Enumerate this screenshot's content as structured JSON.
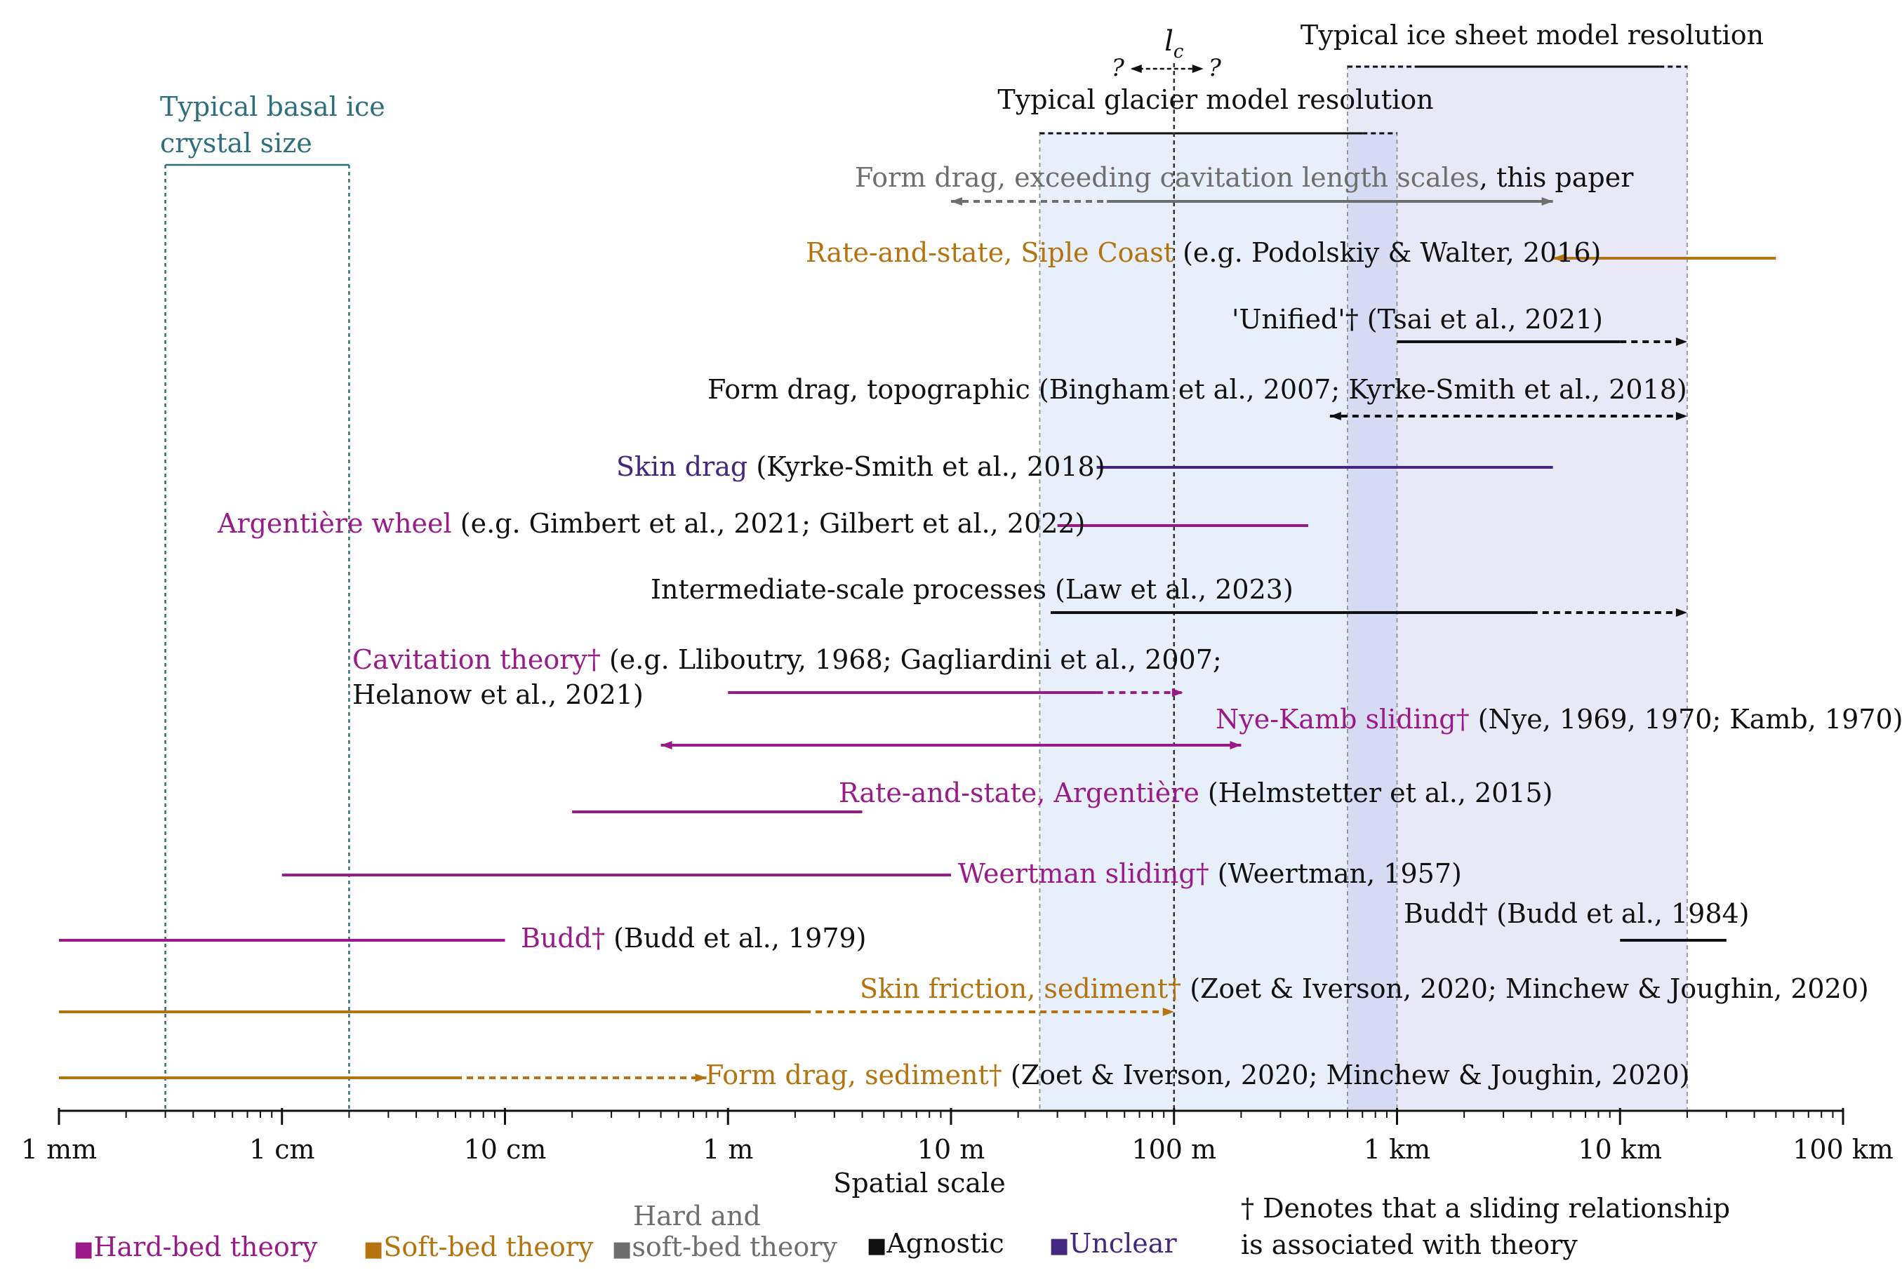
{
  "colors": {
    "hard": "#9a1a8a",
    "soft": "#b5730f",
    "both": "#6e6e6e",
    "agnostic": "#111111",
    "unclear": "#43277e",
    "crystal": "#2e6f7d",
    "glacier_band": "#e7f0fa",
    "icesheet_band": "#e9e8f7",
    "overlap_band": "#d6dbf3",
    "guide": "#999999"
  },
  "chart_data": {
    "type": "range",
    "xlabel": "Spatial scale",
    "xscale": "log10",
    "xlim_m": [
      0.001,
      100000
    ],
    "ticks": [
      {
        "value": 0.001,
        "label": "1 mm"
      },
      {
        "value": 0.01,
        "label": "1 cm"
      },
      {
        "value": 0.1,
        "label": "10 cm"
      },
      {
        "value": 1,
        "label": "1 m"
      },
      {
        "value": 10,
        "label": "10 m"
      },
      {
        "value": 100,
        "label": "100 m"
      },
      {
        "value": 1000,
        "label": "1 km"
      },
      {
        "value": 10000,
        "label": "10 km"
      },
      {
        "value": 100000,
        "label": "100 km"
      }
    ],
    "bands": [
      {
        "name": "Typical glacier model resolution",
        "from": 25,
        "to": 1000,
        "solid_from": 50,
        "solid_to": 700,
        "color_key": "glacier_band"
      },
      {
        "name": "Typical ice sheet model resolution",
        "from": 600,
        "to": 20000,
        "solid_from": 1200,
        "solid_to": 15000,
        "color_key": "icesheet_band"
      },
      {
        "name": "Typical basal ice crystal size",
        "from": 0.003,
        "to": 0.02,
        "color_key": "crystal"
      }
    ],
    "lc": {
      "label": "l",
      "sub": "c",
      "value": 100,
      "question_marks": [
        "?",
        "?"
      ]
    },
    "ranges": [
      {
        "category": "both",
        "label": "Form drag, exceeding cavitation length scales",
        "ref": ", this paper",
        "solid": [
          50,
          5000
        ],
        "dashed": [
          10,
          50
        ],
        "arrow_left": true,
        "arrow_right": true
      },
      {
        "category": "soft",
        "label": "Rate-and-state, Siple Coast",
        "ref": " (e.g. Podolskiy & Walter, 2016)",
        "solid": [
          5000,
          50000
        ],
        "arrow_left": true
      },
      {
        "category": "agnostic",
        "label": "'Unified'†",
        "ref": " (Tsai et al., 2021)",
        "solid": [
          1000,
          10000
        ],
        "dashed": [
          10000,
          20000
        ],
        "arrow_right": true
      },
      {
        "category": "agnostic",
        "label": "Form drag, topographic",
        "ref": " (Bingham et al., 2007; Kyrke-Smith et al., 2018)",
        "dashed": [
          500,
          20000
        ],
        "arrow_left": true,
        "arrow_right": true
      },
      {
        "category": "unclear",
        "label": "Skin drag",
        "ref": " (Kyrke-Smith et al., 2018)",
        "solid": [
          45,
          5000
        ]
      },
      {
        "category": "hard",
        "label": "Argentière wheel",
        "ref": " (e.g. Gimbert et al., 2021; Gilbert et al., 2022)",
        "solid": [
          30,
          400
        ]
      },
      {
        "category": "agnostic",
        "label": "Intermediate-scale processes",
        "ref": " (Law et al., 2023)",
        "solid": [
          28,
          4000
        ],
        "dashed": [
          4000,
          20000
        ],
        "arrow_right": true
      },
      {
        "category": "hard",
        "label": "Cavitation theory†",
        "ref": " (e.g. Lliboutry, 1968; Gagliardini et al., 2007;",
        "ref2": "Helanow et al., 2021)",
        "solid": [
          1,
          45
        ],
        "dashed": [
          45,
          110
        ],
        "arrow_right": true
      },
      {
        "category": "hard",
        "label": "Nye-Kamb sliding†",
        "ref": " (Nye, 1969, 1970; Kamb, 1970)",
        "solid": [
          0.5,
          200
        ],
        "arrow_left": true,
        "arrow_right": true
      },
      {
        "category": "hard",
        "label": "Rate-and-state, Argentière",
        "ref": " (Helmstetter et al., 2015)",
        "solid": [
          0.2,
          4
        ]
      },
      {
        "category": "hard",
        "label": "Weertman sliding†",
        "ref": " (Weertman, 1957)",
        "solid": [
          0.01,
          10
        ]
      },
      {
        "category": "agnostic",
        "label": "Budd†",
        "ref": " (Budd et al., 1984)",
        "solid": [
          10000,
          30000
        ]
      },
      {
        "category": "hard",
        "label": "Budd†",
        "ref": " (Budd et al., 1979)",
        "solid": [
          0.001,
          0.1
        ]
      },
      {
        "category": "soft",
        "label": "Skin friction, sediment†",
        "ref": " (Zoet & Iverson, 2020; Minchew & Joughin, 2020)",
        "solid": [
          0.001,
          2.2
        ],
        "dashed": [
          2.2,
          100
        ],
        "arrow_right": true
      },
      {
        "category": "soft",
        "label": "Form drag, sediment†",
        "ref": " (Zoet & Iverson, 2020; Minchew & Joughin, 2020)",
        "solid": [
          0.001,
          0.06
        ],
        "dashed": [
          0.06,
          0.8
        ],
        "arrow_right": true
      }
    ]
  },
  "legend": {
    "hard": "Hard-bed theory",
    "soft": "Soft-bed theory",
    "both_line1": "Hard and",
    "both_line2": "soft-bed theory",
    "agnostic": "Agnostic",
    "unclear": "Unclear",
    "marker": "■",
    "note_line1": "† Denotes that a sliding relationship",
    "note_line2": "is associated with theory"
  }
}
